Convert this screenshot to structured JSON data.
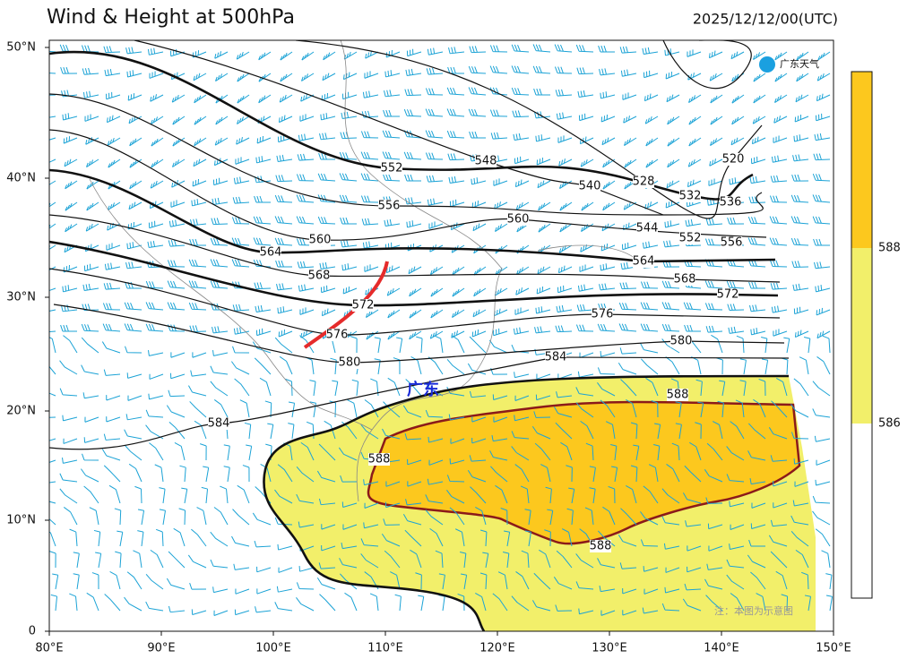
{
  "header": {
    "title": "Wind & Height at 500hPa",
    "time": "2025/12/12/00(UTC)"
  },
  "axes": {
    "lat_labels": [
      "50°N",
      "40°N",
      "30°N",
      "20°N",
      "10°N",
      "0"
    ],
    "lon_labels": [
      "80°E",
      "90°E",
      "100°E",
      "110°E",
      "120°E",
      "130°E",
      "140°E",
      "150°E"
    ]
  },
  "contour_labels": [
    552,
    548,
    540,
    528,
    532,
    520,
    536,
    556,
    560,
    544,
    552,
    556,
    560,
    564,
    564,
    568,
    568,
    572,
    572,
    576,
    576,
    580,
    580,
    584,
    584,
    588,
    588,
    588
  ],
  "region_label": "广东",
  "logo": "广东天气",
  "colorbar": {
    "labels": [
      588,
      586
    ]
  },
  "note": "注：本图为示意图"
}
